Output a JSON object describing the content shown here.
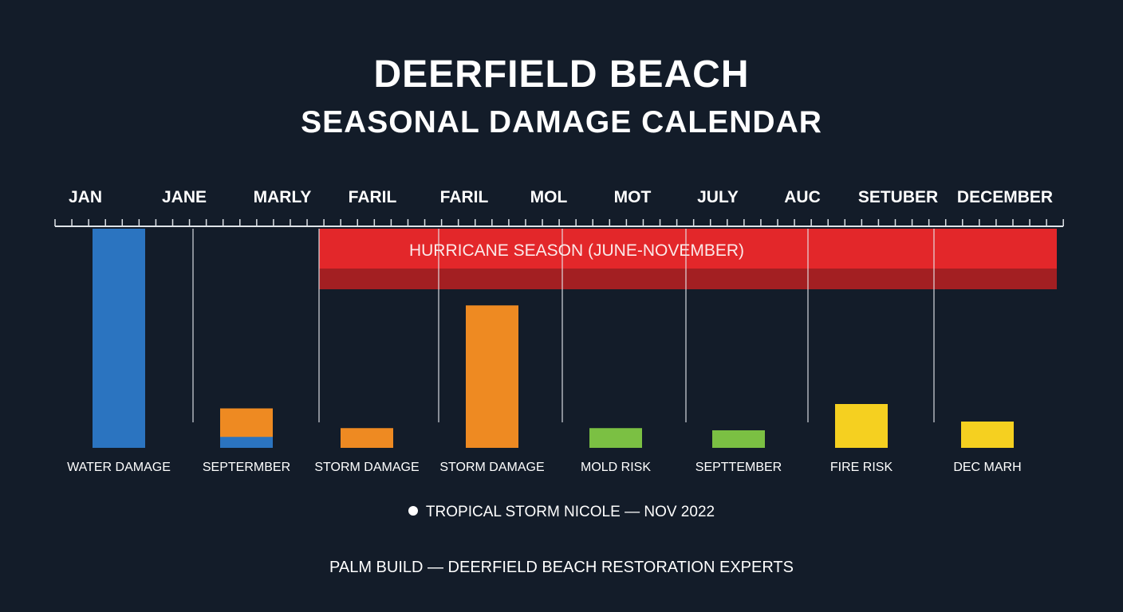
{
  "chart_data": {
    "type": "bar",
    "title": "DEERFIELD BEACH",
    "subtitle": "SEASONAL DAMAGE CALENDAR",
    "month_labels": [
      "JAN",
      "JANE",
      "MARLY",
      "FARIL",
      "FARIL",
      "MOL",
      "MOT",
      "JULY",
      "AUC",
      "SETUBER",
      "DECEMBER"
    ],
    "season_band": {
      "label": "HURRICANE SEASON (JUNE-NOVEMBER)",
      "color": "#e3272a",
      "shade_color": "#a31f22"
    },
    "categories": [
      "WATER DAMAGE",
      "SEPTERMBER",
      "STORM DAMAGE",
      "STORM DAMAGE",
      "MOLD RISK",
      "SEPTTEMBER",
      "FIRE RISK",
      "DEC MARH"
    ],
    "values": [
      100,
      18,
      9,
      65,
      9,
      8,
      20,
      12
    ],
    "value_unit": "relative intensity (% of tallest bar, no axis printed)",
    "colors": [
      "#2b74c0",
      "#ee8a22",
      "#ee8a22",
      "#ee8a22",
      "#7bc043",
      "#7bc043",
      "#f5d020",
      "#f5d020"
    ],
    "secondary_segment": {
      "category": "SEPTERMBER",
      "value": 5,
      "color": "#2b74c0"
    },
    "grid": false,
    "legend": "none"
  },
  "annotation": "TROPICAL STORM NICOLE — NOV 2022",
  "footer": "PALM BUILD — DEERFIELD BEACH RESTORATION EXPERTS",
  "colors": {
    "background": "#131c29",
    "text": "#ffffff"
  }
}
